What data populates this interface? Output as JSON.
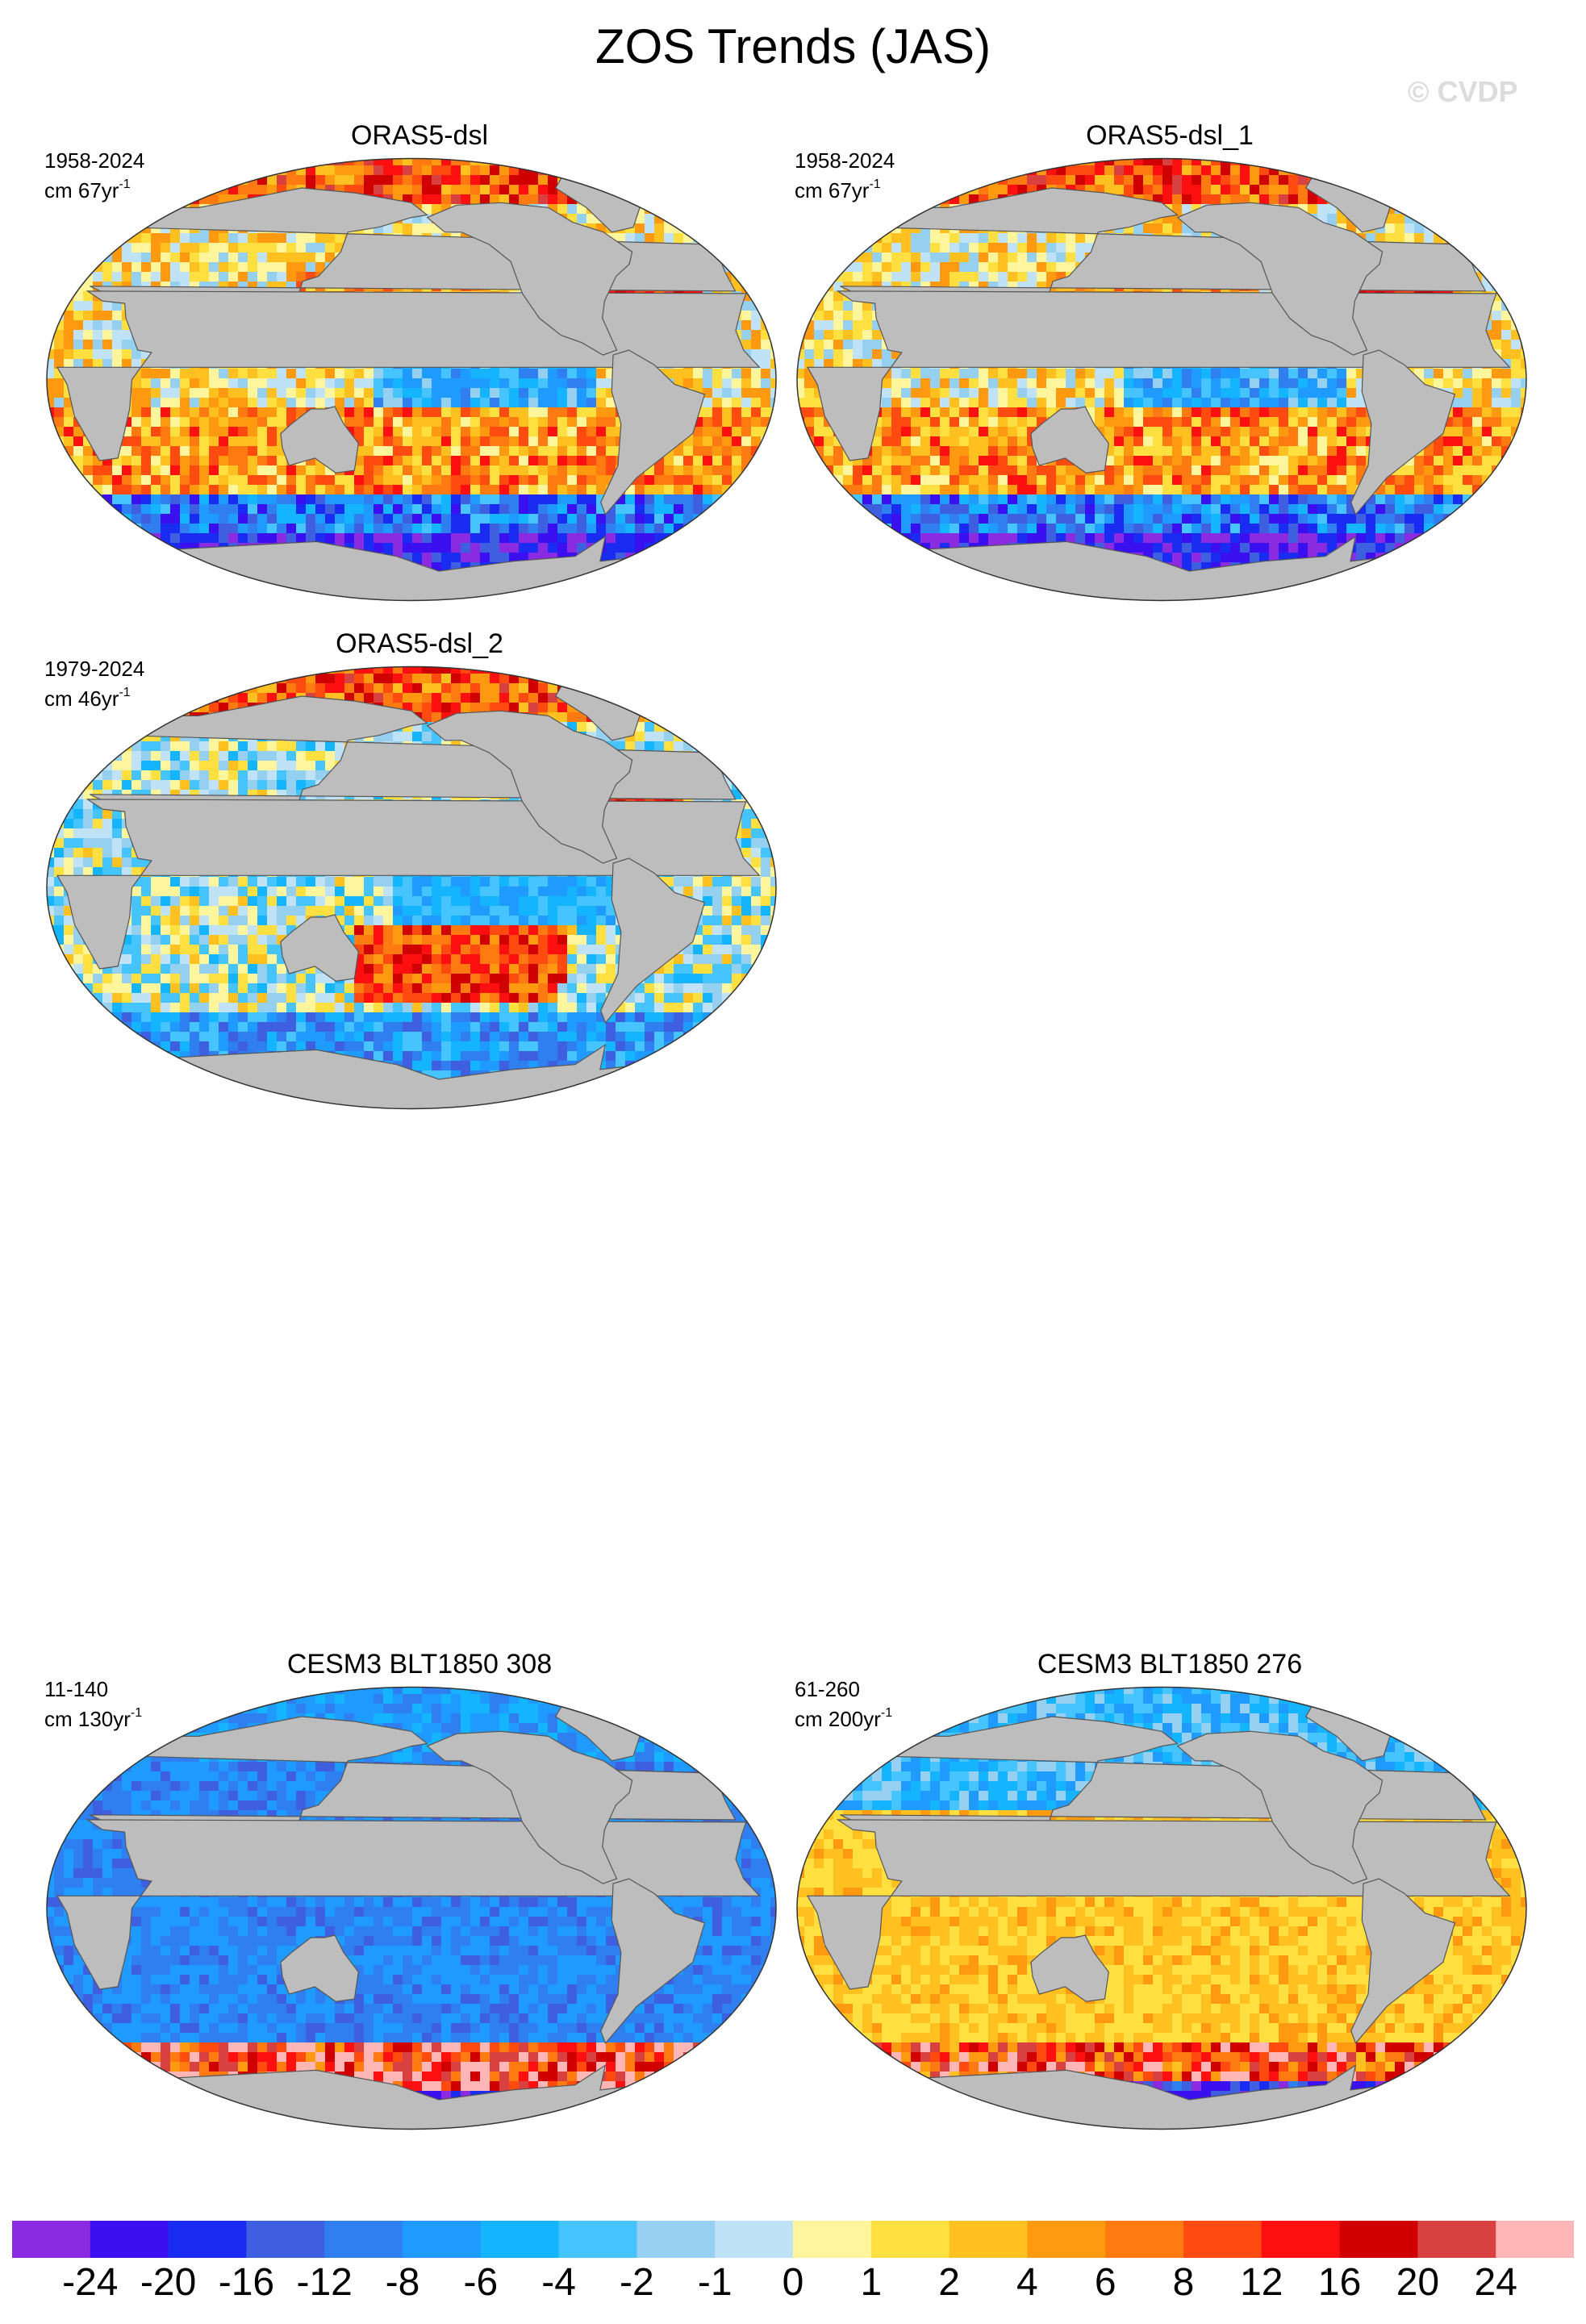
{
  "title": "ZOS Trends (JAS)",
  "watermark": "© CVDP",
  "panels": [
    {
      "name": "ORAS5-dsl",
      "period": "1958-2024",
      "units_base": "cm 67yr",
      "units_exp": "-1",
      "pattern": "obs_a"
    },
    {
      "name": "ORAS5-dsl_1",
      "period": "1958-2024",
      "units_base": "cm 67yr",
      "units_exp": "-1",
      "pattern": "obs_a"
    },
    {
      "name": "ORAS5-dsl_2",
      "period": "1979-2024",
      "units_base": "cm 46yr",
      "units_exp": "-1",
      "pattern": "obs_b"
    },
    {
      "name": "CESM3 BLT1850 308",
      "period": "11-140",
      "units_base": "cm 130yr",
      "units_exp": "-1",
      "pattern": "model_cool"
    },
    {
      "name": "CESM3 BLT1850 276",
      "period": "61-260",
      "units_base": "cm 200yr",
      "units_exp": "-1",
      "pattern": "model_warm"
    }
  ],
  "colorbar": {
    "colors": [
      "#8a2be2",
      "#3a0ff0",
      "#1a2cf2",
      "#3d5fe0",
      "#2f7ff0",
      "#1f9bff",
      "#15b4ff",
      "#45c4ff",
      "#95d0f0",
      "#c0e2f7",
      "#fff59d",
      "#ffe040",
      "#ffc020",
      "#ff9a10",
      "#ff7a10",
      "#ff4a10",
      "#ff1010",
      "#d00000",
      "#d94040",
      "#ffb6b6"
    ],
    "labels": [
      "-24",
      "-20",
      "-16",
      "-12",
      "-8",
      "-6",
      "-4",
      "-2",
      "-1",
      "0",
      "1",
      "2",
      "4",
      "6",
      "8",
      "12",
      "16",
      "20",
      "24"
    ]
  },
  "map_colors": {
    "land": "#bdbdbd",
    "outline": "#333333",
    "coast": "#555555"
  }
}
